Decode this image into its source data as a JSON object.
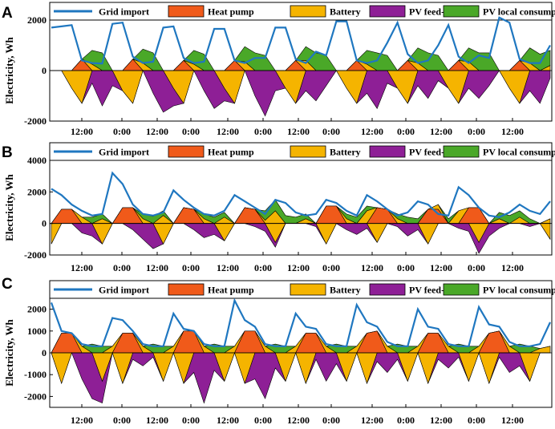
{
  "chart_data": [
    {
      "panel": "A",
      "type": "area",
      "ylabel": "Electricity, Wh",
      "ylim": [
        -2000,
        2000
      ],
      "yticks": [
        -2000,
        0,
        2000
      ],
      "x_tick_labels": [
        "12:00",
        "0:00",
        "12:00",
        "0:00",
        "12:00",
        "0:00",
        "12:00",
        "0:00",
        "12:00",
        "0:00",
        "12:00",
        "0:00",
        "12:00"
      ],
      "legend": [
        "Grid import",
        "Heat pump",
        "Battery",
        "PV feed-in",
        "PV local consumption"
      ],
      "grid_import": [
        1700,
        1750,
        1800,
        400,
        300,
        280,
        1850,
        1900,
        550,
        300,
        350,
        1700,
        1750,
        500,
        300,
        350,
        1650,
        1650,
        400,
        300,
        500,
        500,
        1700,
        1700,
        450,
        300,
        750,
        600,
        1950,
        1950,
        400,
        300,
        400,
        1100,
        1900,
        650,
        300,
        400,
        1000,
        1800,
        550,
        300,
        600,
        500,
        2100,
        1900,
        450,
        300,
        300,
        1000
      ],
      "heat_pump": [
        0,
        0,
        0,
        450,
        0,
        0,
        0,
        0,
        450,
        0,
        0,
        0,
        0,
        400,
        0,
        0,
        0,
        0,
        400,
        0,
        0,
        0,
        0,
        0,
        400,
        0,
        0,
        0,
        0,
        0,
        400,
        0,
        0,
        0,
        0,
        400,
        0,
        0,
        0,
        0,
        400,
        0,
        0,
        0,
        0,
        0,
        400,
        0,
        0,
        0
      ],
      "battery": [
        0,
        0,
        0,
        0,
        250,
        0,
        0,
        0,
        0,
        300,
        0,
        0,
        0,
        0,
        250,
        0,
        0,
        0,
        0,
        350,
        0,
        0,
        0,
        0,
        0,
        400,
        0,
        0,
        0,
        0,
        0,
        250,
        0,
        0,
        0,
        0,
        300,
        0,
        0,
        0,
        0,
        350,
        0,
        0,
        0,
        0,
        0,
        300,
        0,
        200
      ],
      "pv_local": [
        0,
        0,
        0,
        0,
        550,
        700,
        0,
        0,
        0,
        550,
        700,
        0,
        0,
        0,
        550,
        650,
        0,
        0,
        0,
        600,
        700,
        600,
        0,
        0,
        0,
        550,
        700,
        600,
        0,
        0,
        0,
        550,
        700,
        600,
        0,
        0,
        600,
        700,
        600,
        0,
        0,
        550,
        700,
        700,
        0,
        0,
        0,
        600,
        650,
        600
      ],
      "battery_neg": [
        0,
        0,
        -700,
        -1300,
        0,
        0,
        0,
        -800,
        -1300,
        0,
        0,
        0,
        -700,
        -1300,
        0,
        0,
        0,
        -700,
        -1300,
        0,
        0,
        0,
        0,
        -700,
        -1300,
        0,
        0,
        0,
        0,
        -700,
        -1300,
        0,
        0,
        0,
        -700,
        -1300,
        0,
        0,
        0,
        -700,
        -1300,
        0,
        0,
        0,
        0,
        -700,
        -1300,
        0,
        0,
        0
      ],
      "pv_feed_in": [
        0,
        0,
        0,
        0,
        -500,
        -1400,
        -600,
        0,
        0,
        0,
        -900,
        -1650,
        -700,
        0,
        0,
        -800,
        -1500,
        -500,
        0,
        0,
        -1000,
        -1800,
        -800,
        0,
        0,
        -800,
        -1200,
        -600,
        0,
        0,
        0,
        -900,
        -1500,
        -500,
        0,
        0,
        -600,
        -1100,
        -400,
        0,
        0,
        -700,
        -1100,
        -600,
        0,
        0,
        0,
        -800,
        -1300,
        -300
      ]
    },
    {
      "panel": "B",
      "type": "area",
      "ylabel": "Electricity, Wh",
      "ylim": [
        -2000,
        4000
      ],
      "yticks": [
        -2000,
        0,
        2000,
        4000
      ],
      "x_tick_labels": [
        "12:00",
        "0:00",
        "12:00",
        "0:00",
        "12:00",
        "0:00",
        "12:00",
        "0:00",
        "12:00",
        "0:00",
        "12:00",
        "0:00",
        "12:00"
      ],
      "legend": [
        "Grid import",
        "Heat pump",
        "Battery",
        "PV feed-in",
        "PV local consumption"
      ],
      "grid_import": [
        2200,
        1800,
        1200,
        800,
        500,
        600,
        3200,
        2500,
        1200,
        600,
        500,
        700,
        2100,
        1500,
        1000,
        600,
        500,
        800,
        1800,
        1400,
        1000,
        600,
        1500,
        1300,
        700,
        500,
        600,
        1500,
        1300,
        800,
        500,
        1800,
        1400,
        900,
        500,
        700,
        1400,
        1200,
        600,
        500,
        2300,
        1800,
        1000,
        500,
        400,
        700,
        1200,
        800,
        600,
        1400
      ],
      "heat_pump": [
        0,
        900,
        900,
        0,
        0,
        0,
        0,
        1000,
        1000,
        0,
        0,
        0,
        0,
        1000,
        900,
        0,
        0,
        0,
        0,
        1000,
        900,
        0,
        0,
        0,
        0,
        0,
        0,
        1100,
        1100,
        0,
        0,
        0,
        1000,
        900,
        0,
        0,
        0,
        900,
        900,
        0,
        0,
        1000,
        1000,
        0,
        0,
        0,
        0,
        0,
        0,
        0
      ],
      "battery": [
        0,
        0,
        0,
        400,
        0,
        300,
        0,
        0,
        0,
        300,
        0,
        500,
        0,
        0,
        0,
        300,
        0,
        400,
        0,
        0,
        0,
        200,
        800,
        0,
        0,
        300,
        0,
        0,
        0,
        300,
        0,
        800,
        0,
        0,
        300,
        0,
        0,
        0,
        300,
        0,
        800,
        0,
        0,
        0,
        300,
        0,
        400,
        0,
        0,
        300
      ],
      "pv_local": [
        0,
        0,
        0,
        0,
        400,
        300,
        0,
        0,
        0,
        300,
        450,
        300,
        0,
        0,
        0,
        300,
        400,
        300,
        0,
        0,
        0,
        600,
        700,
        500,
        400,
        300,
        0,
        0,
        0,
        300,
        400,
        300,
        0,
        0,
        300,
        400,
        300,
        0,
        0,
        300,
        0,
        0,
        0,
        0,
        400,
        500,
        400,
        300,
        0,
        0
      ],
      "battery_neg": [
        -1300,
        0,
        0,
        0,
        0,
        -1300,
        0,
        0,
        0,
        0,
        0,
        -1300,
        0,
        0,
        0,
        0,
        0,
        -1100,
        0,
        0,
        0,
        0,
        -1200,
        0,
        0,
        0,
        0,
        -1300,
        0,
        0,
        0,
        0,
        -1200,
        0,
        0,
        0,
        0,
        -1300,
        0,
        0,
        0,
        0,
        -1200,
        0,
        0,
        0,
        0,
        0,
        0,
        -1000
      ],
      "pv_feed_in": [
        0,
        0,
        0,
        -600,
        -800,
        0,
        0,
        0,
        -400,
        -1000,
        -1600,
        0,
        0,
        0,
        -400,
        -900,
        -700,
        0,
        0,
        0,
        -200,
        -500,
        -300,
        0,
        0,
        0,
        -200,
        0,
        0,
        -400,
        -700,
        -300,
        0,
        0,
        -200,
        -800,
        -400,
        0,
        0,
        0,
        -300,
        -500,
        -700,
        -800,
        -300,
        0,
        0,
        -200,
        0,
        0
      ]
    },
    {
      "panel": "C",
      "type": "area",
      "ylabel": "Electricity, Wh",
      "ylim": [
        -2500,
        2500
      ],
      "yticks": [
        -2000,
        -1000,
        0,
        1000,
        2000
      ],
      "x_tick_labels": [
        "12:00",
        "0:00",
        "12:00",
        "0:00",
        "12:00",
        "0:00",
        "12:00",
        "0:00",
        "12:00",
        "0:00",
        "12:00",
        "0:00",
        "12:00"
      ],
      "legend": [
        "Grid import",
        "Heat pump",
        "Battery",
        "PV feed-in",
        "PV local consumption"
      ],
      "grid_import": [
        2300,
        1000,
        900,
        400,
        300,
        300,
        1600,
        1500,
        1000,
        400,
        300,
        300,
        1800,
        1100,
        1000,
        400,
        300,
        300,
        2400,
        1500,
        1200,
        400,
        300,
        300,
        1800,
        1200,
        1100,
        400,
        300,
        300,
        2200,
        1400,
        1200,
        500,
        300,
        300,
        2000,
        1200,
        1100,
        400,
        300,
        300,
        2100,
        1300,
        1200,
        500,
        300,
        300,
        400,
        1400
      ],
      "heat_pump": [
        0,
        900,
        900,
        0,
        0,
        0,
        0,
        900,
        900,
        0,
        0,
        0,
        0,
        1000,
        1000,
        0,
        0,
        0,
        0,
        1000,
        1000,
        0,
        0,
        0,
        0,
        900,
        900,
        0,
        0,
        0,
        0,
        900,
        1000,
        0,
        0,
        0,
        0,
        900,
        900,
        0,
        0,
        0,
        0,
        900,
        1000,
        0,
        0,
        0,
        0,
        0
      ],
      "battery": [
        0,
        0,
        0,
        300,
        0,
        0,
        300,
        0,
        0,
        300,
        0,
        0,
        300,
        0,
        0,
        300,
        0,
        0,
        300,
        0,
        0,
        300,
        0,
        0,
        300,
        0,
        0,
        300,
        0,
        0,
        300,
        0,
        0,
        300,
        0,
        0,
        300,
        0,
        0,
        300,
        0,
        0,
        300,
        0,
        0,
        300,
        0,
        0,
        200,
        300
      ],
      "pv_local": [
        0,
        0,
        0,
        0,
        400,
        300,
        0,
        0,
        0,
        0,
        400,
        300,
        0,
        0,
        0,
        0,
        400,
        300,
        0,
        0,
        0,
        0,
        400,
        300,
        0,
        0,
        0,
        0,
        400,
        300,
        0,
        0,
        0,
        0,
        400,
        300,
        0,
        0,
        0,
        0,
        400,
        300,
        0,
        0,
        0,
        0,
        400,
        300,
        0,
        0
      ],
      "battery_neg": [
        0,
        -1400,
        0,
        0,
        0,
        -1300,
        0,
        -1400,
        0,
        0,
        0,
        -1300,
        0,
        -1400,
        0,
        0,
        0,
        -1300,
        0,
        -1400,
        0,
        0,
        0,
        -1300,
        0,
        -1400,
        0,
        0,
        0,
        -1300,
        0,
        -1400,
        0,
        0,
        0,
        -1300,
        0,
        -1400,
        0,
        0,
        0,
        -1300,
        0,
        -1400,
        0,
        0,
        0,
        -1300,
        0,
        0
      ],
      "pv_feed_in": [
        0,
        0,
        0,
        -1200,
        -2100,
        -1000,
        0,
        0,
        -300,
        -600,
        -200,
        0,
        0,
        0,
        -900,
        -2300,
        -800,
        0,
        0,
        0,
        -1200,
        -2100,
        -700,
        0,
        0,
        0,
        -300,
        -1300,
        -500,
        0,
        0,
        0,
        -400,
        -900,
        -300,
        0,
        0,
        0,
        -300,
        -700,
        -200,
        0,
        0,
        0,
        -200,
        -900,
        -600,
        0,
        0,
        0
      ]
    }
  ]
}
